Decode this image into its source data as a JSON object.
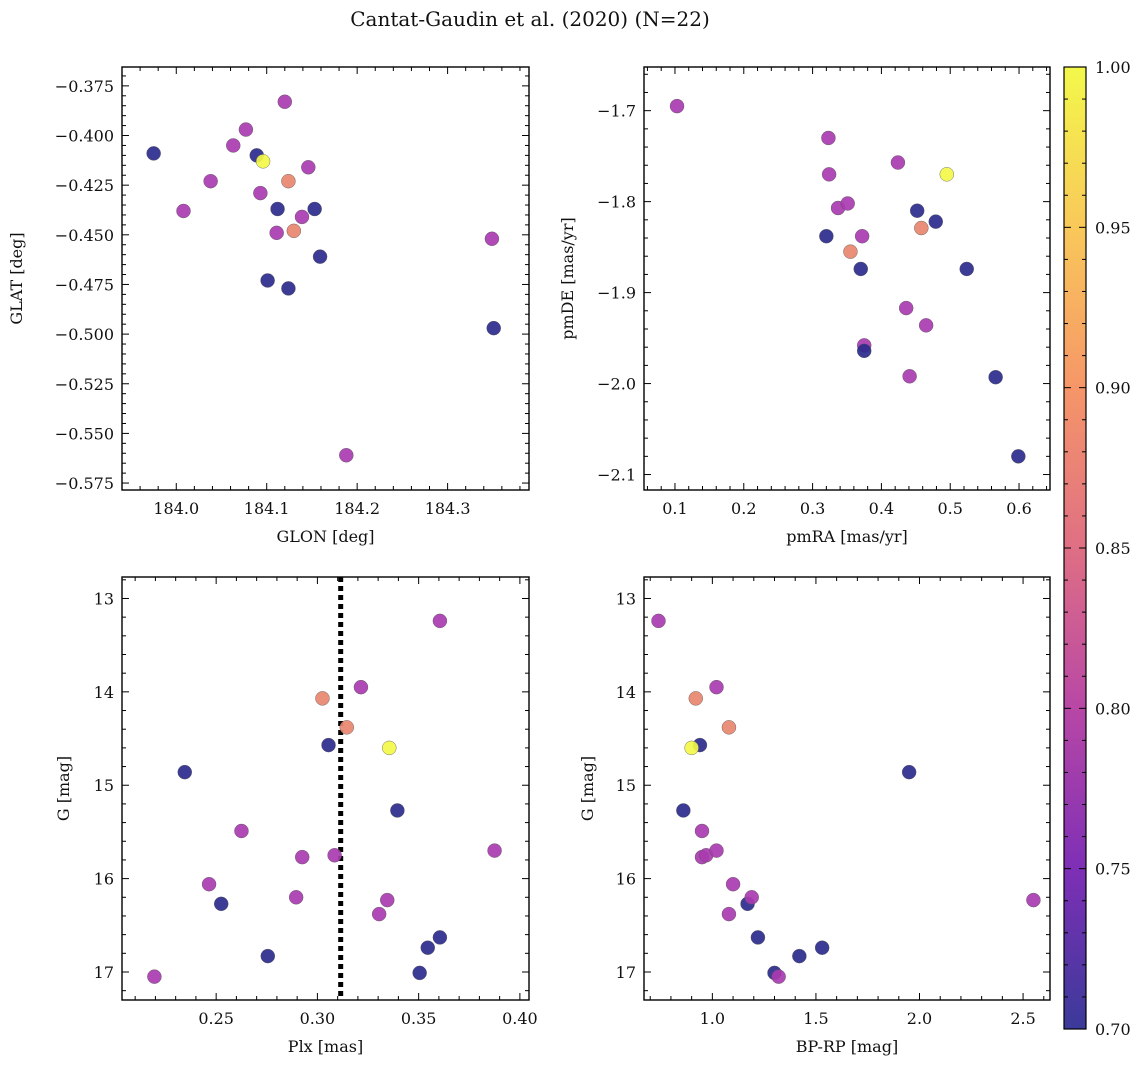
{
  "figure": {
    "suptitle": "Cantat-Gaudin et al. (2020) (N=22)"
  },
  "colorbar": {
    "colormap": "plasma",
    "min": 0.7,
    "max": 1.0,
    "ticks": [
      "0.70",
      "0.75",
      "0.80",
      "0.85",
      "0.90",
      "0.95",
      "1.00"
    ]
  },
  "chart_data": [
    {
      "type": "scatter",
      "xlabel": "GLON [deg]",
      "ylabel": "GLAT [deg]",
      "xlim": [
        183.94,
        184.39
      ],
      "ylim": [
        -0.5785,
        -0.3655
      ],
      "xticks": [
        "184.0",
        "184.1",
        "184.2",
        "184.3"
      ],
      "yticks": [
        "−0.375",
        "−0.400",
        "−0.425",
        "−0.450",
        "−0.475",
        "−0.500",
        "−0.525",
        "−0.550",
        "−0.575"
      ],
      "x": [
        183.975,
        184.008,
        184.038,
        184.063,
        184.077,
        184.093,
        184.089,
        184.096,
        184.12,
        184.124,
        184.111,
        184.112,
        184.13,
        184.101,
        184.124,
        184.139,
        184.146,
        184.153,
        184.159,
        184.188,
        184.349,
        184.351
      ],
      "y": [
        -0.409,
        -0.438,
        -0.423,
        -0.405,
        -0.397,
        -0.429,
        -0.41,
        -0.413,
        -0.383,
        -0.423,
        -0.449,
        -0.437,
        -0.448,
        -0.473,
        -0.477,
        -0.441,
        -0.416,
        -0.437,
        -0.461,
        -0.561,
        -0.452,
        -0.497
      ],
      "c": [
        0.7,
        0.79,
        0.79,
        0.79,
        0.79,
        0.79,
        0.7,
        1.0,
        0.79,
        0.89,
        0.79,
        0.7,
        0.89,
        0.7,
        0.7,
        0.79,
        0.79,
        0.7,
        0.7,
        0.79,
        0.79,
        0.7
      ]
    },
    {
      "type": "scatter",
      "xlabel": "pmRA [mas/yr]",
      "ylabel": "pmDE [mas/yr]",
      "xlim": [
        0.055,
        0.645
      ],
      "ylim": [
        -2.117,
        -1.652
      ],
      "xticks": [
        "0.1",
        "0.2",
        "0.3",
        "0.4",
        "0.5",
        "0.6"
      ],
      "yticks": [
        "−1.7",
        "−1.8",
        "−1.9",
        "−2.0",
        "−2.1"
      ],
      "x": [
        0.103,
        0.323,
        0.324,
        0.337,
        0.351,
        0.32,
        0.355,
        0.372,
        0.37,
        0.375,
        0.375,
        0.424,
        0.436,
        0.441,
        0.452,
        0.458,
        0.465,
        0.479,
        0.495,
        0.524,
        0.566,
        0.599
      ],
      "y": [
        -1.695,
        -1.73,
        -1.77,
        -1.807,
        -1.802,
        -1.838,
        -1.855,
        -1.838,
        -1.874,
        -1.958,
        -1.964,
        -1.757,
        -1.917,
        -1.992,
        -1.81,
        -1.829,
        -1.936,
        -1.822,
        -1.77,
        -1.874,
        -1.993,
        -2.08
      ],
      "c": [
        0.79,
        0.79,
        0.79,
        0.79,
        0.79,
        0.7,
        0.89,
        0.79,
        0.7,
        0.79,
        0.7,
        0.79,
        0.79,
        0.79,
        0.7,
        0.89,
        0.79,
        0.7,
        1.0,
        0.7,
        0.7,
        0.7
      ]
    },
    {
      "type": "scatter",
      "xlabel": "Plx [mas]",
      "ylabel": "G [mag]",
      "xlim": [
        0.2035,
        0.4045
      ],
      "ylim": [
        17.3,
        12.77
      ],
      "y_inverted": true,
      "xticks": [
        "0.25",
        "0.30",
        "0.35",
        "0.40"
      ],
      "yticks": [
        "13",
        "14",
        "15",
        "16",
        "17"
      ],
      "vline": 0.3115,
      "x": [
        0.2195,
        0.2345,
        0.2465,
        0.2525,
        0.2625,
        0.2755,
        0.2895,
        0.2925,
        0.3025,
        0.3055,
        0.3085,
        0.3145,
        0.3215,
        0.3305,
        0.3355,
        0.3345,
        0.3395,
        0.3505,
        0.3545,
        0.3605,
        0.3605,
        0.3875
      ],
      "y": [
        17.05,
        14.86,
        16.06,
        16.27,
        15.49,
        16.83,
        16.2,
        15.77,
        14.07,
        14.57,
        15.75,
        14.38,
        13.95,
        16.38,
        14.6,
        16.23,
        15.27,
        17.01,
        16.74,
        16.63,
        13.24,
        15.7
      ],
      "c": [
        0.79,
        0.7,
        0.79,
        0.7,
        0.79,
        0.7,
        0.79,
        0.79,
        0.89,
        0.7,
        0.79,
        0.89,
        0.79,
        0.79,
        1.0,
        0.79,
        0.7,
        0.7,
        0.7,
        0.7,
        0.79,
        0.79
      ]
    },
    {
      "type": "scatter",
      "xlabel": "BP-RP [mag]",
      "ylabel": "G [mag]",
      "xlim": [
        0.67,
        2.63
      ],
      "ylim": [
        17.3,
        12.77
      ],
      "y_inverted": true,
      "xticks": [
        "1.0",
        "1.5",
        "2.0",
        "2.5"
      ],
      "yticks": [
        "13",
        "14",
        "15",
        "16",
        "17"
      ],
      "x": [
        0.74,
        0.86,
        0.92,
        0.94,
        0.9,
        0.95,
        0.95,
        0.97,
        1.02,
        1.02,
        1.08,
        1.08,
        1.1,
        1.17,
        1.19,
        1.22,
        1.3,
        1.32,
        1.42,
        1.53,
        1.95,
        2.55
      ],
      "y": [
        13.24,
        15.27,
        14.07,
        14.57,
        14.6,
        15.49,
        15.77,
        15.75,
        13.95,
        15.7,
        14.38,
        16.38,
        16.06,
        16.27,
        16.2,
        16.63,
        17.01,
        17.05,
        16.83,
        16.74,
        14.86,
        16.23
      ],
      "c": [
        0.79,
        0.7,
        0.89,
        0.7,
        1.0,
        0.79,
        0.79,
        0.79,
        0.79,
        0.79,
        0.89,
        0.79,
        0.79,
        0.7,
        0.79,
        0.7,
        0.7,
        0.79,
        0.7,
        0.7,
        0.7,
        0.79
      ]
    }
  ]
}
